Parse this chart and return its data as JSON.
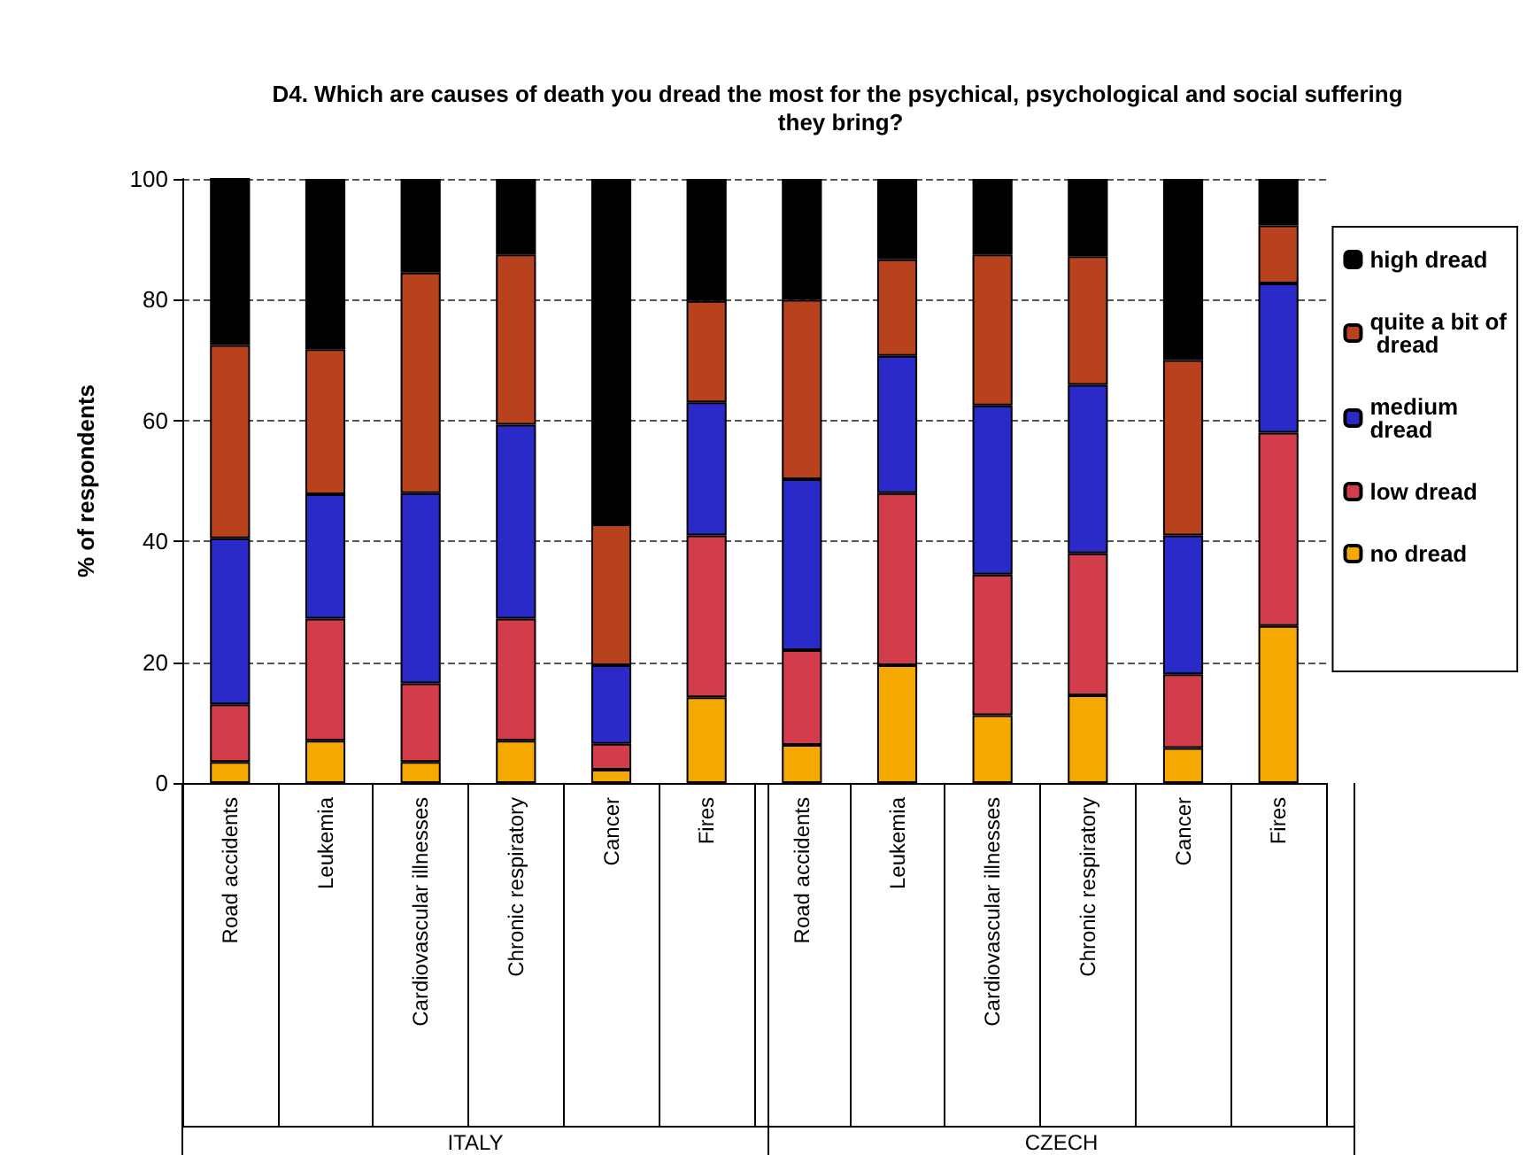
{
  "chart_data": {
    "type": "bar",
    "stacked": true,
    "title": "D4. Which are causes of death you dread the most for the psychical, psychological and social suffering they bring?",
    "ylabel": "% of respondents",
    "categories": [
      "Road accidents",
      "Leukemia",
      "Cardiovascular illnesses",
      "Chronic respiratory",
      "Cancer",
      "Fires",
      "Road accidents",
      "Leukemia",
      "Cardiovascular illnesses",
      "Chronic respiratory",
      "Cancer",
      "Fires"
    ],
    "annotations": [
      "ITALY",
      "CZECH"
    ],
    "series": [
      {
        "name": "no dread",
        "color": "#f5a800",
        "values": [
          3.5,
          7,
          3.5,
          7,
          2.2,
          14.2,
          6.3,
          19.5,
          11.2,
          14.5,
          5.8,
          26
        ]
      },
      {
        "name": "low dread",
        "color": "#d23c4b",
        "values": [
          9.5,
          20.2,
          13,
          20.2,
          4.3,
          26.8,
          15.7,
          28.5,
          23.3,
          23.5,
          12.2,
          32
        ]
      },
      {
        "name": "medium dread",
        "color": "#2a2ac8",
        "values": [
          27.5,
          20.6,
          31.5,
          32.1,
          13,
          22,
          28.3,
          22.7,
          28,
          27.9,
          23,
          24.7
        ]
      },
      {
        "name": "quite a bit of dread",
        "color": "#b8421e",
        "values": [
          32,
          24,
          36.5,
          28.2,
          23.3,
          16.8,
          29.7,
          16,
          25,
          21.3,
          29,
          9.6
        ]
      },
      {
        "name": "high dread",
        "color": "#000000",
        "values": [
          27.7,
          28.2,
          15.5,
          12.5,
          57.2,
          20.2,
          20,
          13.3,
          12.5,
          12.8,
          30,
          7.7
        ]
      }
    ],
    "ylim": [
      0,
      100
    ],
    "yticks": [
      0,
      20,
      40,
      60,
      80,
      100
    ],
    "grid": "y",
    "legend": "right"
  }
}
